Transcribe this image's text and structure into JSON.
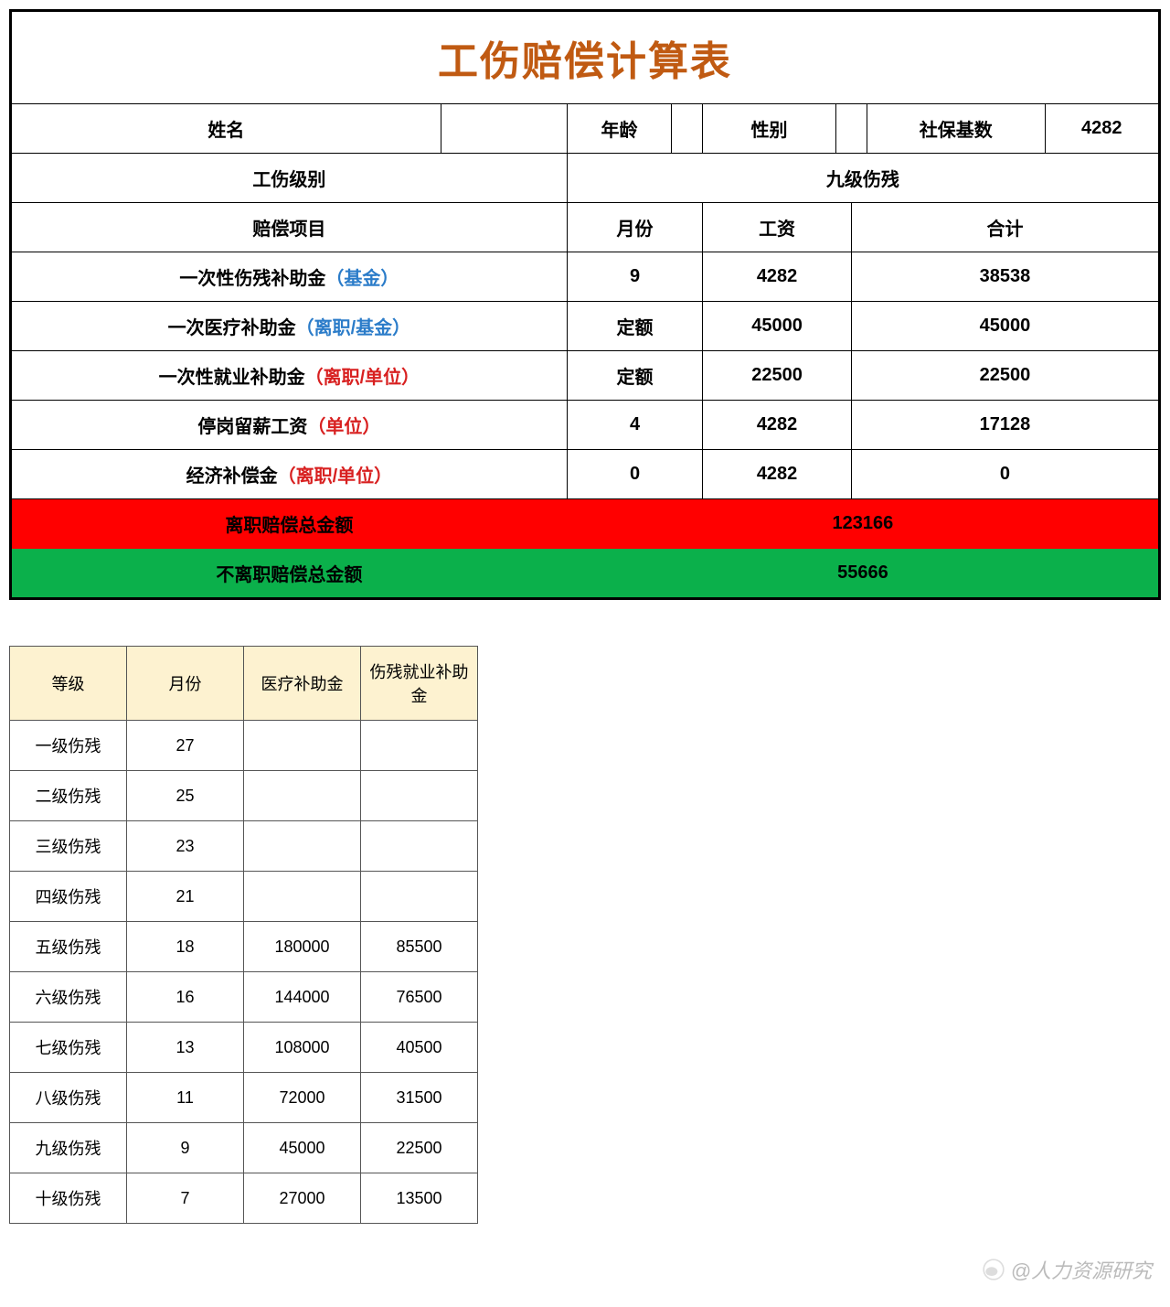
{
  "title": "工伤赔偿计算表",
  "colors": {
    "title_color": "#c05a12",
    "blue": "#2b7cc9",
    "red_text": "#d82020",
    "red_bg": "#ff0000",
    "green_bg": "#0bb04b",
    "ref_header_bg": "#fdf2d0"
  },
  "info": {
    "name_label": "姓名",
    "name_value": "",
    "age_label": "年龄",
    "age_value": "",
    "gender_label": "性别",
    "gender_value": "",
    "ssbase_label": "社保基数",
    "ssbase_value": "4282",
    "level_label": "工伤级别",
    "level_value": "九级伤残"
  },
  "headers": {
    "item": "赔偿项目",
    "month": "月份",
    "wage": "工资",
    "total": "合计"
  },
  "rows": [
    {
      "item_main": "一次性伤残补助金",
      "item_paren": "（基金）",
      "paren_class": "blue-text",
      "month": "9",
      "wage": "4282",
      "total": "38538"
    },
    {
      "item_main": "一次医疗补助金",
      "item_paren": "（离职/基金）",
      "paren_class": "blue-text",
      "month": "定额",
      "wage": "45000",
      "total": "45000"
    },
    {
      "item_main": "一次性就业补助金",
      "item_paren": "（离职/单位）",
      "paren_class": "red-text",
      "month": "定额",
      "wage": "22500",
      "total": "22500"
    },
    {
      "item_main": "停岗留薪工资",
      "item_paren": "（单位）",
      "paren_class": "red-text",
      "month": "4",
      "wage": "4282",
      "total": "17128"
    },
    {
      "item_main": "经济补偿金",
      "item_paren": "（离职/单位）",
      "paren_class": "red-text",
      "month": "0",
      "wage": "4282",
      "total": "0"
    }
  ],
  "totals": {
    "leave_label": "离职赔偿总金额",
    "leave_value": "123166",
    "stay_label": "不离职赔偿总金额",
    "stay_value": "55666"
  },
  "ref": {
    "headers": {
      "level": "等级",
      "month": "月份",
      "medical": "医疗补助金",
      "employ": "伤残就业补助金"
    },
    "rows": [
      {
        "level": "一级伤残",
        "month": "27",
        "medical": "",
        "employ": ""
      },
      {
        "level": "二级伤残",
        "month": "25",
        "medical": "",
        "employ": ""
      },
      {
        "level": "三级伤残",
        "month": "23",
        "medical": "",
        "employ": ""
      },
      {
        "level": "四级伤残",
        "month": "21",
        "medical": "",
        "employ": ""
      },
      {
        "level": "五级伤残",
        "month": "18",
        "medical": "180000",
        "employ": "85500"
      },
      {
        "level": "六级伤残",
        "month": "16",
        "medical": "144000",
        "employ": "76500"
      },
      {
        "level": "七级伤残",
        "month": "13",
        "medical": "108000",
        "employ": "40500"
      },
      {
        "level": "八级伤残",
        "month": "11",
        "medical": "72000",
        "employ": "31500"
      },
      {
        "level": "九级伤残",
        "month": "9",
        "medical": "45000",
        "employ": "22500"
      },
      {
        "level": "十级伤残",
        "month": "7",
        "medical": "27000",
        "employ": "13500"
      }
    ]
  },
  "watermark": "@人力资源研究"
}
